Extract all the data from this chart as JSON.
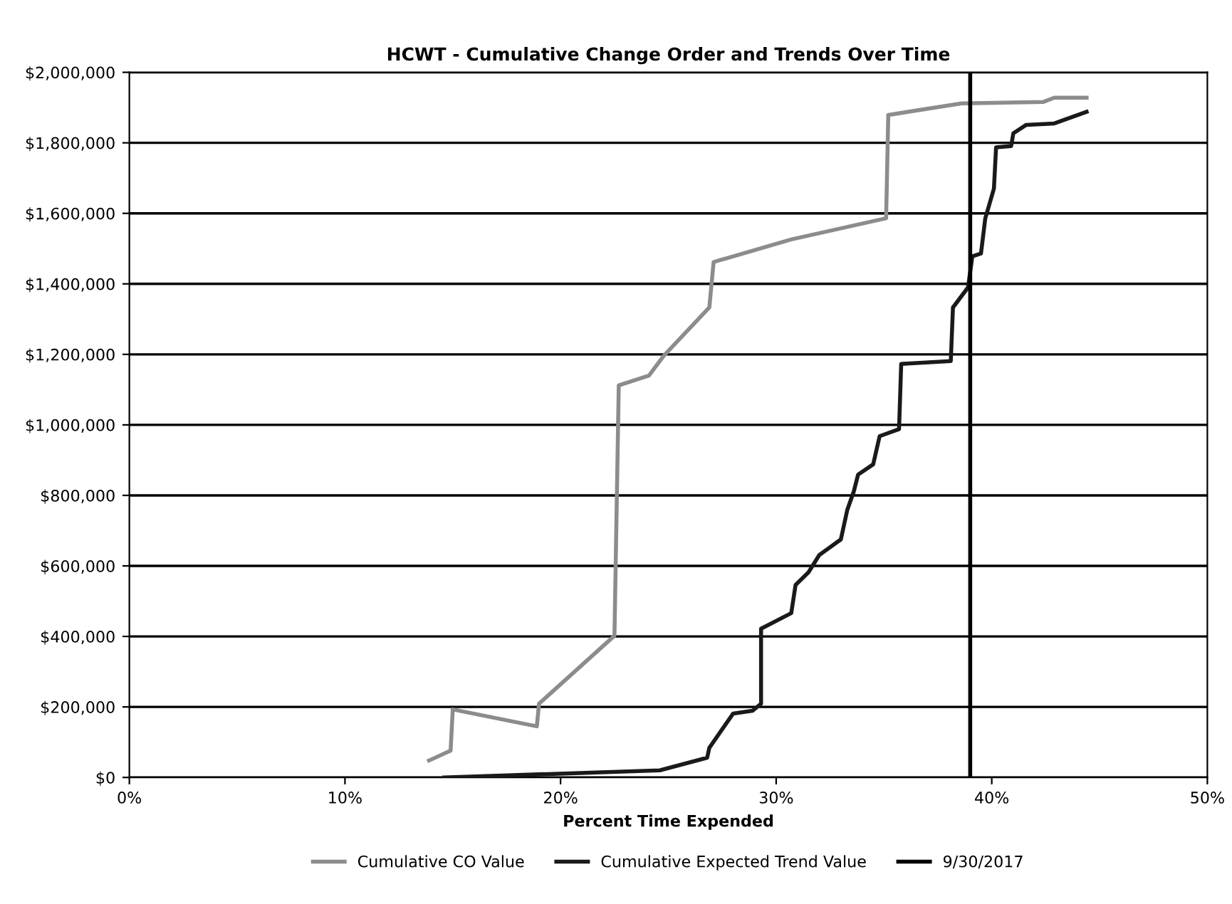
{
  "chart_data": {
    "type": "line",
    "title": "HCWT - Cumulative Change Order and Trends Over Time",
    "xlabel": "Percent Time Expended",
    "xlim": [
      0,
      50
    ],
    "xticks": [
      {
        "value": 0,
        "label": "0%"
      },
      {
        "value": 10,
        "label": "10%"
      },
      {
        "value": 20,
        "label": "20%"
      },
      {
        "value": 30,
        "label": "30%"
      },
      {
        "value": 40,
        "label": "40%"
      },
      {
        "value": 50,
        "label": "50%"
      }
    ],
    "ylim": [
      0,
      2000000
    ],
    "yticks": [
      {
        "value": 0,
        "label": "$0"
      },
      {
        "value": 200000,
        "label": "$200,000"
      },
      {
        "value": 400000,
        "label": "$400,000"
      },
      {
        "value": 600000,
        "label": "$600,000"
      },
      {
        "value": 800000,
        "label": "$800,000"
      },
      {
        "value": 1000000,
        "label": "$1,000,000"
      },
      {
        "value": 1200000,
        "label": "$1,200,000"
      },
      {
        "value": 1400000,
        "label": "$1,400,000"
      },
      {
        "value": 1600000,
        "label": "$1,600,000"
      },
      {
        "value": 1800000,
        "label": "$1,800,000"
      },
      {
        "value": 2000000,
        "label": "$2,000,000"
      }
    ],
    "grid": "y",
    "legend": "bottom",
    "line_style": "solid",
    "marker": "none",
    "series": [
      {
        "name": "Cumulative CO Value",
        "color": "#8c8c8c",
        "x": [
          13.9,
          14.9,
          15.0,
          18.9,
          19.0,
          22.5,
          22.7,
          24.1,
          24.8,
          26.9,
          27.1,
          30.7,
          35.1,
          35.2,
          38.6,
          42.4,
          42.9,
          44.4
        ],
        "values": [
          48000,
          76000,
          193000,
          145000,
          209000,
          402000,
          1112000,
          1140000,
          1197000,
          1333000,
          1462000,
          1526000,
          1586000,
          1879000,
          1912000,
          1916000,
          1928000,
          1928000
        ]
      },
      {
        "name": "Cumulative Expected Trend Value",
        "color": "#1a1a1a",
        "x": [
          14.6,
          24.6,
          26.8,
          26.9,
          28.0,
          28.9,
          29.3,
          29.3,
          30.7,
          30.9,
          31.5,
          32.0,
          33.0,
          33.3,
          33.6,
          33.8,
          34.5,
          34.8,
          35.7,
          35.8,
          38.1,
          38.2,
          38.9,
          39.1,
          39.5,
          39.7,
          40.1,
          40.2,
          40.9,
          41.0,
          41.6,
          42.9,
          44.4
        ],
        "values": [
          0,
          20000,
          56000,
          84000,
          181000,
          189000,
          209000,
          422000,
          466000,
          546000,
          582000,
          631000,
          675000,
          759000,
          811000,
          859000,
          888000,
          968000,
          988000,
          1173000,
          1181000,
          1333000,
          1390000,
          1478000,
          1486000,
          1586000,
          1670000,
          1787000,
          1791000,
          1827000,
          1851000,
          1855000,
          1888000
        ]
      },
      {
        "name": "9/30/2017",
        "color": "#000000",
        "x": [
          39.0,
          39.0
        ],
        "values": [
          0,
          2000000
        ]
      }
    ]
  }
}
